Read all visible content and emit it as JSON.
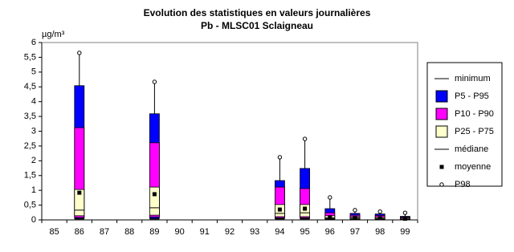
{
  "chart_data": {
    "type": "box",
    "title": "Evolution des statistiques en valeurs journalières",
    "subtitle": "Pb - MLSC01 Sclaigneau",
    "y_label": "µg/m³",
    "categories": [
      "85",
      "86",
      "87",
      "88",
      "89",
      "90",
      "91",
      "92",
      "93",
      "94",
      "95",
      "96",
      "97",
      "98",
      "99"
    ],
    "ylim": [
      0,
      6
    ],
    "yticks": [
      0,
      {
        "value": 0.5,
        "label": "0,5"
      },
      1,
      {
        "value": 1.5,
        "label": "1,5"
      },
      2,
      {
        "value": 2.5,
        "label": "2,5"
      },
      3,
      {
        "value": 3.5,
        "label": "3,5"
      },
      4,
      {
        "value": 4.5,
        "label": "4,5"
      },
      5,
      {
        "value": 5.5,
        "label": "5,5"
      },
      6
    ],
    "series": [
      {
        "name": "minimum",
        "marker": "line",
        "color": "#000000",
        "values": [
          null,
          0.03,
          null,
          null,
          0.03,
          null,
          null,
          null,
          null,
          0.03,
          0.03,
          0.01,
          0.01,
          0.01,
          0
        ]
      },
      {
        "name": "P5 - P95",
        "marker": "box",
        "color": "#0000ff",
        "low": [
          null,
          0.05,
          null,
          null,
          0.05,
          null,
          null,
          null,
          null,
          0.05,
          0.05,
          0.02,
          0.01,
          0.01,
          0.01
        ],
        "high": [
          null,
          4.54,
          null,
          null,
          3.59,
          null,
          null,
          null,
          null,
          1.33,
          1.74,
          0.38,
          0.22,
          0.2,
          0.12
        ]
      },
      {
        "name": "P10 - P90",
        "marker": "box",
        "color": "#ff00ff",
        "low": [
          null,
          0.08,
          null,
          null,
          0.1,
          null,
          null,
          null,
          null,
          0.07,
          0.07,
          0.03,
          0.02,
          0.02,
          0.01
        ],
        "high": [
          null,
          3.12,
          null,
          null,
          2.61,
          null,
          null,
          null,
          null,
          1.11,
          1.06,
          0.24,
          0.16,
          0.15,
          0.09
        ]
      },
      {
        "name": "P25 - P75",
        "marker": "box",
        "color": "#ffffcc",
        "low": [
          null,
          0.14,
          null,
          null,
          0.16,
          null,
          null,
          null,
          null,
          0.11,
          0.11,
          0.04,
          0.03,
          0.03,
          0.02
        ],
        "high": [
          null,
          1.03,
          null,
          null,
          1.11,
          null,
          null,
          null,
          null,
          0.52,
          0.52,
          0.14,
          0.1,
          0.09,
          0.06
        ]
      },
      {
        "name": "médiane",
        "marker": "line",
        "color": "#000000",
        "values": [
          null,
          0.33,
          null,
          null,
          0.41,
          null,
          null,
          null,
          null,
          0.22,
          0.24,
          0.07,
          0.06,
          0.05,
          0.03
        ]
      },
      {
        "name": "moyenne",
        "marker": "square",
        "color": "#000000",
        "values": [
          null,
          0.92,
          null,
          null,
          0.87,
          null,
          null,
          null,
          null,
          0.35,
          0.38,
          0.09,
          0.07,
          0.06,
          0.04
        ]
      },
      {
        "name": "P98",
        "marker": "circle",
        "color": "#000000",
        "values": [
          null,
          5.65,
          null,
          null,
          4.67,
          null,
          null,
          null,
          null,
          2.12,
          2.74,
          0.76,
          0.33,
          0.28,
          0.24
        ]
      }
    ]
  }
}
